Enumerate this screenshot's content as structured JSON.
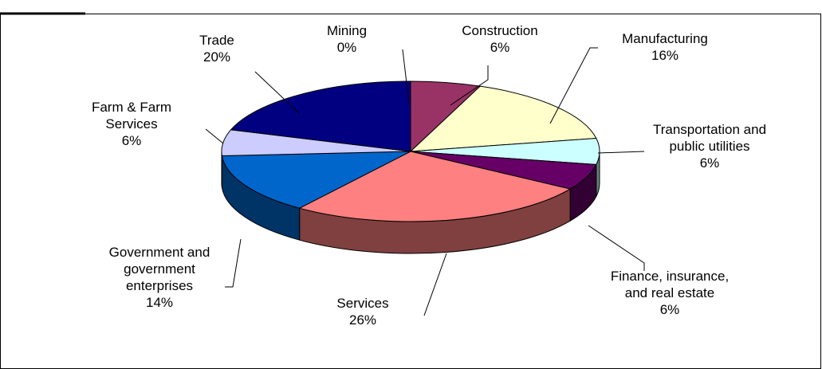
{
  "chart_data": {
    "type": "pie",
    "categories": [
      "Mining",
      "Construction",
      "Manufacturing",
      "Transportation and public utilities",
      "Finance, insurance, and real estate",
      "Services",
      "Government and government enterprises",
      "Farm & Farm Services",
      "Trade"
    ],
    "values": [
      0,
      6,
      16,
      6,
      6,
      26,
      14,
      6,
      20
    ],
    "value_labels": [
      "0%",
      "6%",
      "16%",
      "6%",
      "6%",
      "26%",
      "14%",
      "6%",
      "20%"
    ],
    "colors": [
      "#333366",
      "#993366",
      "#FFFFCC",
      "#CCFFFF",
      "#660066",
      "#FF8080",
      "#0066CC",
      "#CCCCFF",
      "#000080"
    ]
  }
}
